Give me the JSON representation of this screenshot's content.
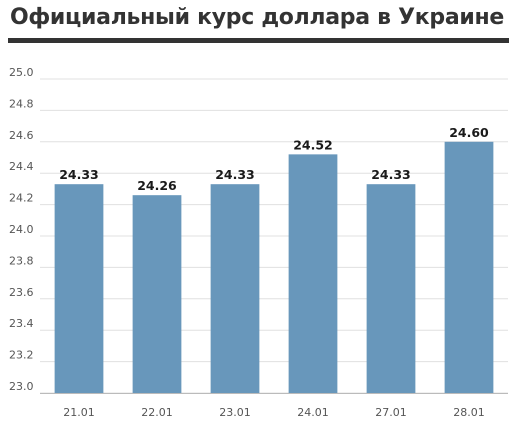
{
  "chart_data": {
    "type": "bar",
    "title": "Официальный курс доллара в Украине",
    "categories": [
      "21.01",
      "22.01",
      "23.01",
      "24.01",
      "27.01",
      "28.01"
    ],
    "values": [
      24.33,
      24.26,
      24.33,
      24.52,
      24.33,
      24.6
    ],
    "value_labels": [
      "24.33",
      "24.26",
      "24.33",
      "24.52",
      "24.33",
      "24.60"
    ],
    "ylim": [
      23.0,
      25.0
    ],
    "yticks": [
      25.0,
      24.8,
      24.6,
      24.4,
      24.2,
      24.0,
      23.8,
      23.6,
      23.4,
      23.2,
      23.0
    ],
    "ytick_labels": [
      "25.0",
      "24.8",
      "24.6",
      "24.4",
      "24.2",
      "24.0",
      "23.8",
      "23.6",
      "23.4",
      "23.2",
      "23.0"
    ],
    "grid": "horizontal",
    "legend": "none",
    "colors": {
      "bar": "#6897bb",
      "title": "#333333",
      "grid": "#e0e0e0",
      "axis": "#bbbbbb"
    }
  }
}
